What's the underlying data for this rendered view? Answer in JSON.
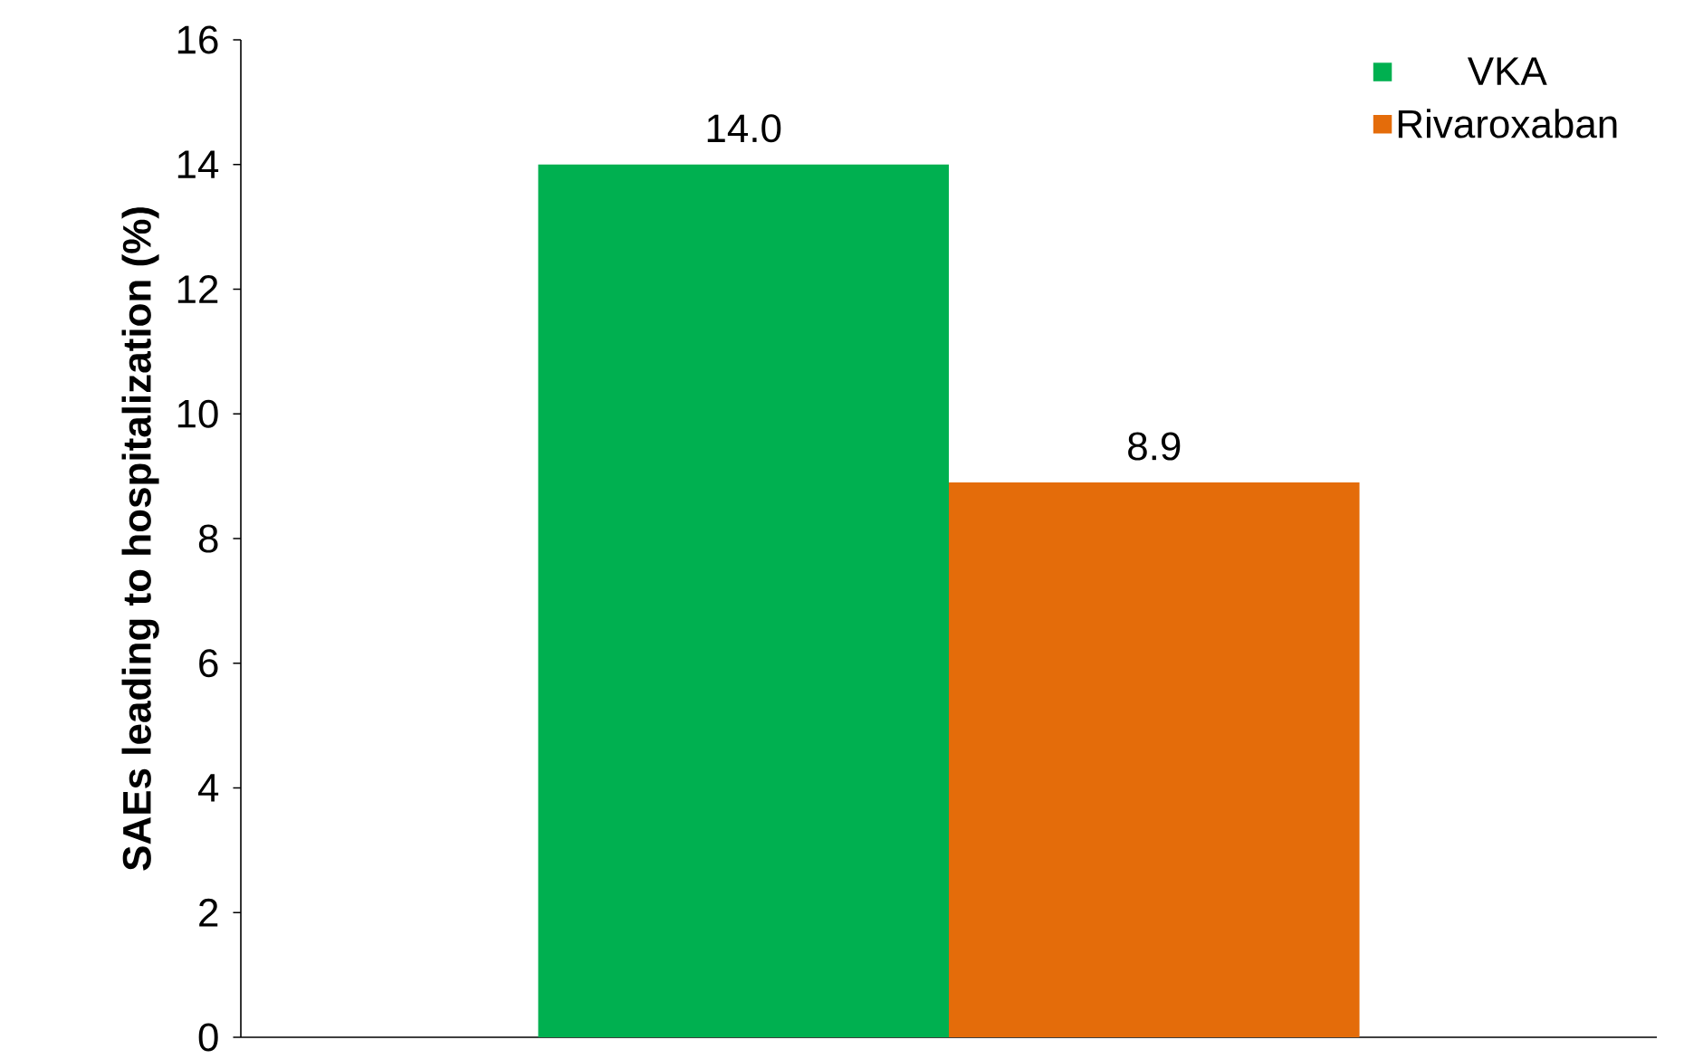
{
  "chart_data": {
    "type": "bar",
    "ylabel": "SAEs leading to hospitalization (%)",
    "categories": [
      null
    ],
    "series": [
      {
        "name": "VKA",
        "color": "#00b050",
        "values": [
          14.0
        ],
        "value_labels": [
          "14.0"
        ]
      },
      {
        "name": "Rivaroxaban",
        "color": "#e46c0a",
        "values": [
          8.9
        ],
        "value_labels": [
          "8.9"
        ]
      }
    ],
    "ylim": [
      0,
      16
    ],
    "yticks": [
      0,
      2,
      4,
      6,
      8,
      10,
      12,
      14,
      16
    ],
    "legend": "top right"
  }
}
